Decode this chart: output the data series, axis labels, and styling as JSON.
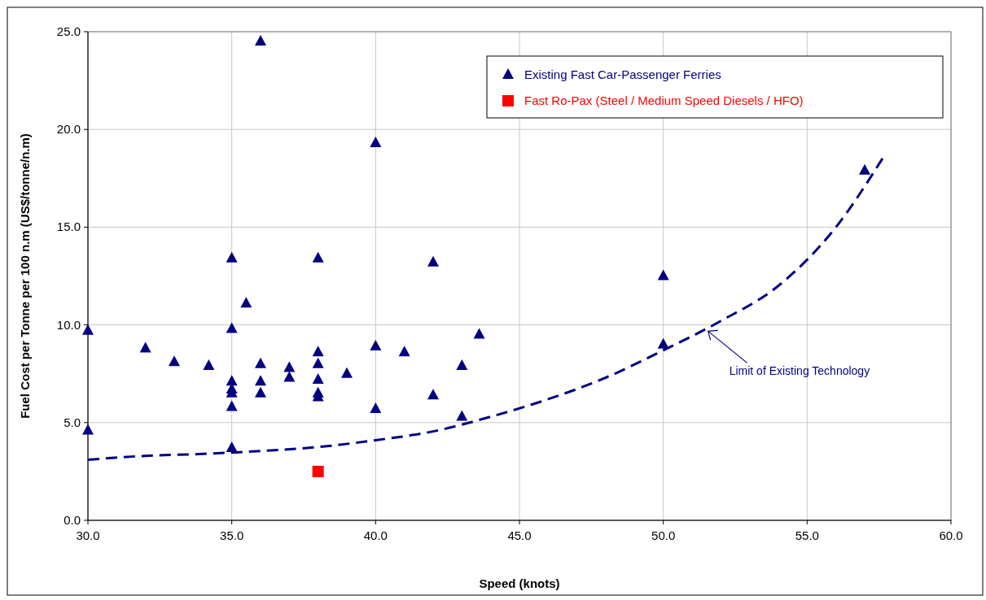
{
  "chart_data": {
    "type": "scatter",
    "xlabel": "Speed (knots)",
    "ylabel": "Fuel Cost per Tonne per 100 n.m (US$/tonne/n.m)",
    "xlim": [
      30,
      60
    ],
    "xticks": [
      {
        "value": 30,
        "label": "30.0"
      },
      {
        "value": 35,
        "label": "35.0"
      },
      {
        "value": 40,
        "label": "40.0"
      },
      {
        "value": 45,
        "label": "45.0"
      },
      {
        "value": 50,
        "label": "50.0"
      },
      {
        "value": 55,
        "label": "55.0"
      },
      {
        "value": 60,
        "label": "60.0"
      }
    ],
    "ylim": [
      0,
      25
    ],
    "yticks": [
      {
        "value": 0,
        "label": "0.0"
      },
      {
        "value": 5,
        "label": "5.0"
      },
      {
        "value": 10,
        "label": "10.0"
      },
      {
        "value": 15,
        "label": "15.0"
      },
      {
        "value": 20,
        "label": "20.0"
      },
      {
        "value": 25,
        "label": "25.0"
      }
    ],
    "grid": true,
    "legend": "top right",
    "series": [
      {
        "name": "Existing Fast Car-Passenger Ferries",
        "color": "#000080",
        "marker": "triangle",
        "x": [
          30,
          30,
          32,
          33,
          34.2,
          35,
          35,
          35,
          35,
          35,
          35,
          35,
          35.5,
          36,
          36,
          36,
          36,
          37,
          37,
          38,
          38,
          38,
          38,
          38,
          38,
          39,
          40,
          40,
          40,
          41,
          42,
          42,
          43,
          43,
          43.6,
          50,
          50,
          57
        ],
        "values": [
          9.7,
          4.6,
          8.8,
          8.1,
          7.9,
          13.4,
          9.8,
          7.1,
          6.7,
          6.5,
          5.8,
          3.7,
          11.1,
          24.5,
          8.0,
          7.1,
          6.5,
          7.8,
          7.3,
          13.4,
          8.6,
          8.0,
          7.2,
          6.5,
          6.3,
          7.5,
          19.3,
          8.9,
          5.7,
          8.6,
          13.2,
          6.4,
          7.9,
          5.3,
          9.5,
          12.5,
          9.0,
          17.9
        ]
      },
      {
        "name": "Fast Ro-Pax (Steel / Medium Speed Diesels / HFO)",
        "color": "#ff0000",
        "marker": "square",
        "x": [
          38
        ],
        "values": [
          2.5
        ]
      },
      {
        "type": "line",
        "color": "#000080",
        "line_style": "dashed",
        "x": [
          30,
          32,
          34,
          36,
          38,
          40,
          42,
          44,
          46,
          48,
          50,
          52,
          54,
          56,
          57.7
        ],
        "values": [
          3.1,
          3.3,
          3.4,
          3.55,
          3.75,
          4.1,
          4.55,
          5.3,
          6.2,
          7.3,
          8.7,
          10.2,
          12.0,
          15.0,
          18.7
        ]
      }
    ],
    "annotations": [
      {
        "text": "Limit of Existing Technology",
        "x": 51.5,
        "y": 9.8
      }
    ]
  }
}
